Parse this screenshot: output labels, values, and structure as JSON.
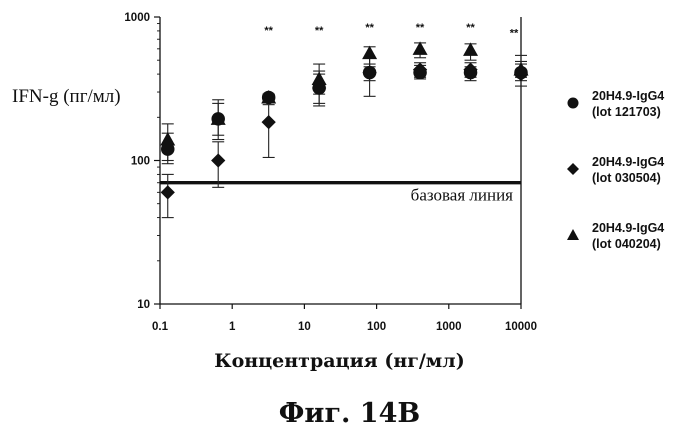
{
  "figure_caption": "Фиг. 14B",
  "chart_data": {
    "type": "scatter",
    "xscale": "log",
    "yscale": "log",
    "xlabel": "Концентрация (нг/мл)",
    "ylabel": "IFN-g (пг/мл)",
    "xlim": [
      0.1,
      10000
    ],
    "ylim": [
      10,
      1000
    ],
    "xticks": [
      0.1,
      1,
      10,
      100,
      1000,
      10000
    ],
    "xtick_labels": [
      "0.1",
      "1",
      "10",
      "100",
      "1000",
      "10000"
    ],
    "yticks": [
      10,
      100,
      1000
    ],
    "ytick_labels": [
      "10",
      "100",
      "1000"
    ],
    "grid": false,
    "legend_position": "right",
    "baseline": {
      "value": 70,
      "label": "базовая линия"
    },
    "significance": {
      "label": "**",
      "x": [
        3.2,
        16,
        80,
        400,
        2000,
        8000
      ],
      "y": [
        760,
        760,
        800,
        800,
        800,
        730
      ]
    },
    "series": [
      {
        "name": "20H4.9-IgG4 (lot 121703)",
        "line1": "20H4.9-IgG4",
        "line2": "(lot 121703)",
        "marker": "circle",
        "x": [
          0.128,
          0.64,
          3.2,
          16,
          80,
          400,
          2000,
          10000
        ],
        "y": [
          120,
          195,
          275,
          320,
          410,
          410,
          410,
          410
        ],
        "err_low": [
          95,
          140,
          260,
          250,
          280,
          370,
          360,
          360
        ],
        "err_high": [
          155,
          265,
          290,
          400,
          520,
          460,
          450,
          470
        ]
      },
      {
        "name": "20H4.9-IgG4 (lot 030504)",
        "line1": "20H4.9-IgG4",
        "line2": "(lot 030504)",
        "marker": "diamond",
        "x": [
          0.128,
          0.64,
          3.2,
          16,
          80,
          400,
          2000,
          10000
        ],
        "y": [
          60,
          100,
          185,
          320,
          410,
          430,
          430,
          400
        ],
        "err_low": [
          40,
          65,
          105,
          240,
          360,
          380,
          380,
          330
        ],
        "err_high": [
          80,
          135,
          245,
          420,
          470,
          480,
          480,
          540
        ]
      },
      {
        "name": "20H4.9-IgG4 (lot 040204)",
        "line1": "20H4.9-IgG4",
        "line2": "(lot 040204)",
        "marker": "triangle",
        "x": [
          0.128,
          0.64,
          3.2,
          16,
          80,
          400,
          2000,
          10000
        ],
        "y": [
          140,
          195,
          275,
          370,
          560,
          600,
          590,
          430
        ],
        "err_low": [
          100,
          150,
          260,
          290,
          450,
          520,
          500,
          380
        ],
        "err_high": [
          180,
          250,
          290,
          470,
          620,
          660,
          650,
          490
        ]
      }
    ]
  }
}
